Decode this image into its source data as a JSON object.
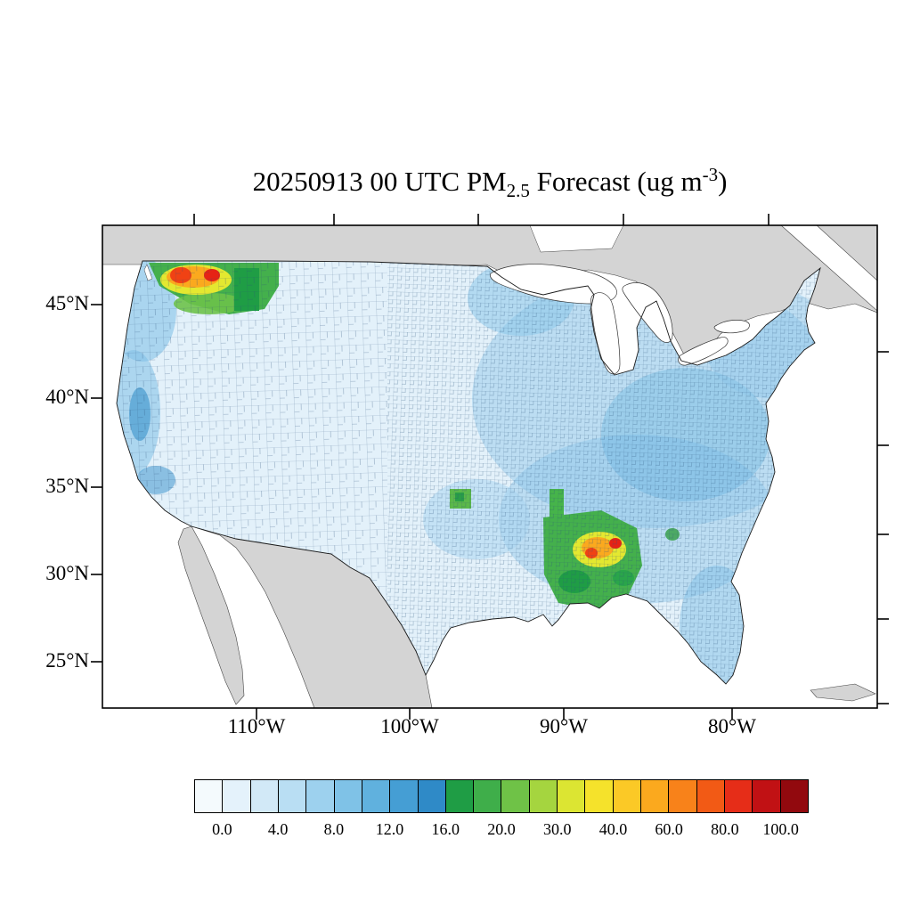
{
  "figure": {
    "title": {
      "prefix": "20250913 00 UTC PM",
      "subscript": "2.5",
      "middle": " Forecast (ug m",
      "superscript": "-3",
      "suffix": ")"
    }
  },
  "axes": {
    "lat_labels": [
      "45°N",
      "40°N",
      "35°N",
      "30°N",
      "25°N"
    ],
    "lon_labels": [
      "110°W",
      "100°W",
      "90°W",
      "80°W"
    ]
  },
  "colorbar": {
    "tick_labels": [
      "0.0",
      "4.0",
      "8.0",
      "12.0",
      "16.0",
      "20.0",
      "30.0",
      "40.0",
      "60.0",
      "80.0",
      "100.0"
    ],
    "colors": [
      "#f4fafd",
      "#e4f2fb",
      "#d2e9f7",
      "#b9def3",
      "#9dd1ee",
      "#7fc2e7",
      "#60b1de",
      "#459ed4",
      "#2f8ac7",
      "#1f9d45",
      "#3fae4a",
      "#6fc247",
      "#a5d53f",
      "#dce532",
      "#f5e22b",
      "#fbc926",
      "#fba91e",
      "#f8821a",
      "#f25a15",
      "#e62d18",
      "#c11114",
      "#92090e"
    ]
  },
  "chart_data": {
    "type": "choropleth_map",
    "title": "20250913 00 UTC PM2.5 Forecast (ug m-3)",
    "variable": "PM2.5",
    "units": "ug m-3",
    "region": "Contiguous United States, county-level shading",
    "colorbar_tick_values": [
      0,
      4,
      8,
      12,
      16,
      20,
      30,
      40,
      60,
      80,
      100
    ],
    "lat_ticks_deg_n": [
      45,
      40,
      35,
      30,
      25
    ],
    "lon_ticks_deg_w": [
      110,
      100,
      90,
      80
    ],
    "background_range_ug_m3": "0-12 over most of the CONUS (light to medium blues)",
    "high_value_regions": [
      {
        "area": "Pacific Northwest (E Washington / N Idaho / W Montana)",
        "approx_values_ug_m3": "20 to 100+ (green, yellow, orange, red counties)"
      },
      {
        "area": "Central Gulf Coast (Mississippi / Alabama)",
        "approx_values_ug_m3": "16 to 80 (green and yellow with small orange/red cores)"
      },
      {
        "area": "Lower Mississippi valley strip and north-central Texas",
        "approx_values_ug_m3": "16-20 (green counties)"
      }
    ]
  }
}
